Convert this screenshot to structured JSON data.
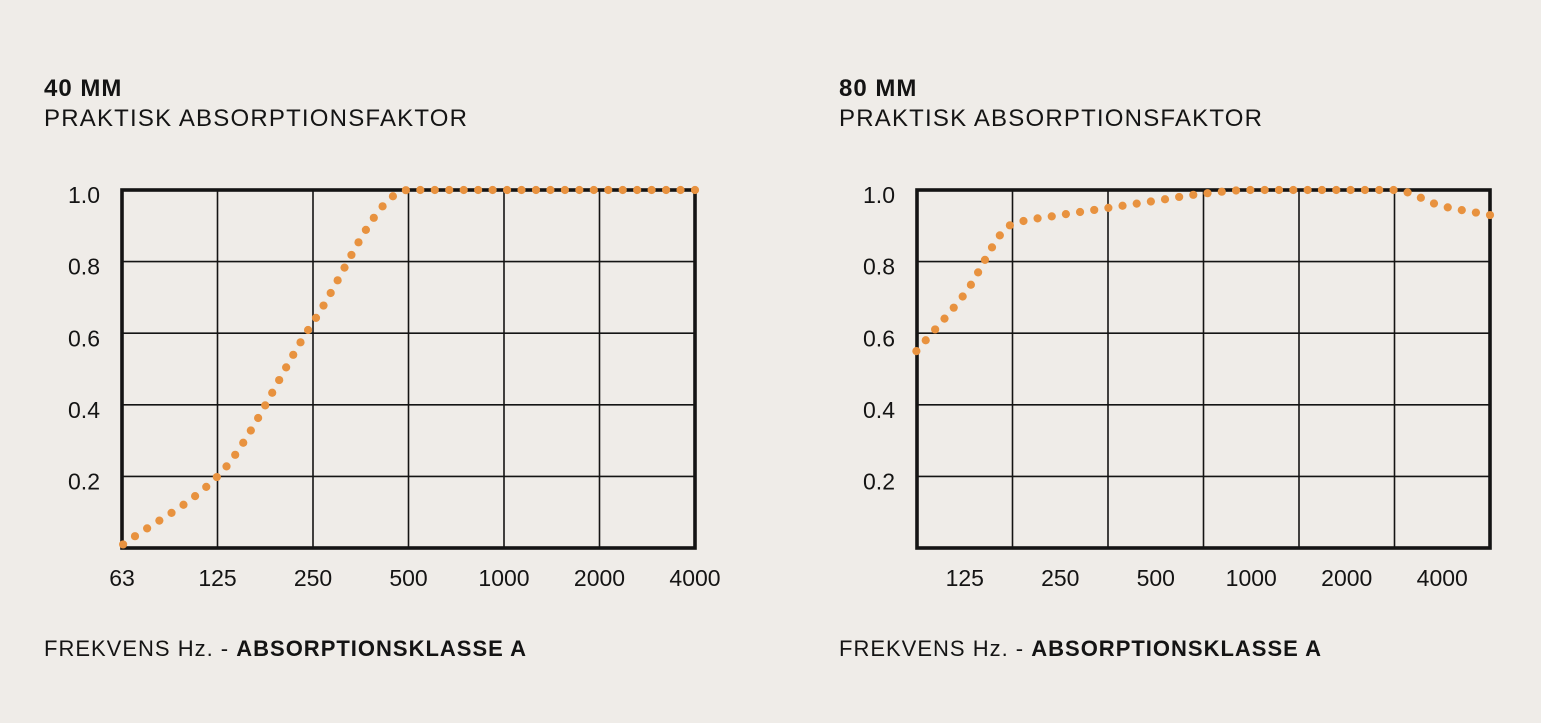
{
  "page": {
    "background": "#efece8",
    "text_color": "#141414",
    "accent": "#e8923f"
  },
  "chart_data": [
    {
      "type": "line",
      "line_style": "dotted",
      "title": "40 MM",
      "subtitle": "PRAKTISK ABSORPTIONSFAKTOR",
      "xlabel_regular": "FREKVENS Hz. - ",
      "xlabel_bold": "ABSORPTIONSKLASSE A",
      "x_scale": "log-octave",
      "x_left_hz": 62.5,
      "octaves_span": 6,
      "x_tick_labels": [
        "63",
        "125",
        "250",
        "500",
        "1000",
        "2000",
        "4000"
      ],
      "x_tick_octaves": [
        0,
        1,
        2,
        3,
        4,
        5,
        6
      ],
      "ylim": [
        0,
        1.0
      ],
      "y_tick_labels": [
        "1.0",
        "0.8",
        "0.6",
        "0.4",
        "0.2"
      ],
      "y_tick_values": [
        1.0,
        0.8,
        0.6,
        0.4,
        0.2
      ],
      "grid": true,
      "legend": "none",
      "series": [
        {
          "name": "praktisk absorptionsfaktor 40 mm",
          "color": "#e8923f",
          "points_hz_value": [
            [
              63,
              0.01
            ],
            [
              125,
              0.2
            ],
            [
              250,
              0.63
            ],
            [
              500,
              1.0
            ],
            [
              1000,
              1.0
            ],
            [
              2000,
              1.0
            ],
            [
              4000,
              1.0
            ]
          ]
        }
      ]
    },
    {
      "type": "line",
      "line_style": "dotted",
      "title": "80 MM",
      "subtitle": "PRAKTISK ABSORPTIONSFAKTOR",
      "xlabel_regular": "FREKVENS Hz. - ",
      "xlabel_bold": "ABSORPTIONSKLASSE A",
      "x_scale": "log-octave",
      "x_left_hz": 88.39,
      "octaves_span": 6,
      "x_tick_labels": [
        "125",
        "250",
        "500",
        "1000",
        "2000",
        "4000"
      ],
      "x_tick_octaves": [
        0.5,
        1.5,
        2.5,
        3.5,
        4.5,
        5.5
      ],
      "ylim": [
        0,
        1.0
      ],
      "y_tick_labels": [
        "1.0",
        "0.8",
        "0.6",
        "0.4",
        "0.2"
      ],
      "y_tick_values": [
        1.0,
        0.8,
        0.6,
        0.4,
        0.2
      ],
      "grid": true,
      "legend": "none",
      "series": [
        {
          "name": "praktisk absorptionsfaktor 80 mm",
          "color": "#e8923f",
          "points_hz_value": [
            [
              88,
              0.55
            ],
            [
              125,
              0.71
            ],
            [
              177,
              0.905
            ],
            [
              250,
              0.93
            ],
            [
              354,
              0.95
            ],
            [
              500,
              0.97
            ],
            [
              707,
              0.99
            ],
            [
              1000,
              1.0
            ],
            [
              1414,
              1.0
            ],
            [
              2000,
              1.0
            ],
            [
              2828,
              1.0
            ],
            [
              4000,
              0.955
            ],
            [
              5657,
              0.93
            ]
          ]
        }
      ]
    }
  ]
}
